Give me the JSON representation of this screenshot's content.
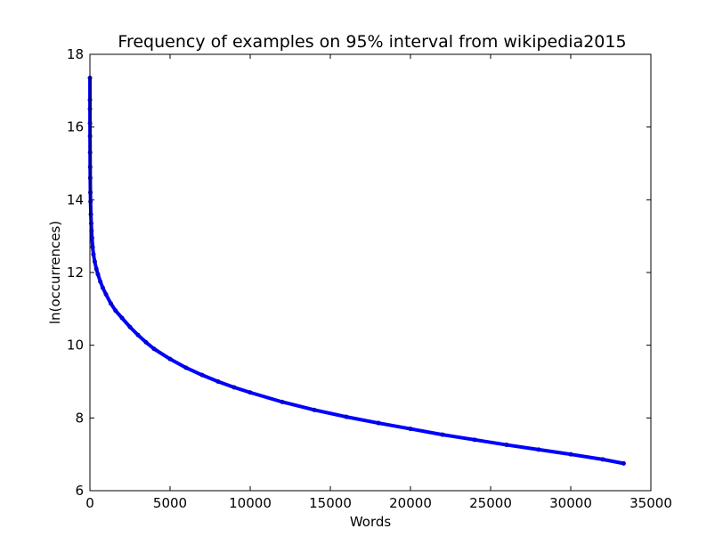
{
  "chart_data": {
    "type": "line",
    "title": "Frequency of examples on 95% interval from wikipedia2015",
    "xlabel": "Words",
    "ylabel": "ln(occurrences)",
    "xlim": [
      0,
      35000
    ],
    "ylim": [
      6,
      18
    ],
    "x_ticks": [
      0,
      5000,
      10000,
      15000,
      20000,
      25000,
      30000,
      35000
    ],
    "y_ticks": [
      6,
      8,
      10,
      12,
      14,
      16,
      18
    ],
    "grid": false,
    "legend": "none",
    "series_color": "#0000ff",
    "series": [
      {
        "x": [
          1,
          2,
          3,
          5,
          7,
          10,
          15,
          20,
          30,
          40,
          60,
          80,
          100,
          130,
          170,
          220,
          300,
          400,
          500,
          650,
          800,
          1000,
          1300,
          1600,
          2000,
          2500,
          3000,
          3500,
          4000,
          5000,
          6000,
          7000,
          8000,
          9000,
          10000,
          12000,
          14000,
          16000,
          18000,
          20000,
          22000,
          24000,
          26000,
          28000,
          30000,
          32000,
          33300
        ],
        "y": [
          17.35,
          16.75,
          16.5,
          16.1,
          15.75,
          15.3,
          14.9,
          14.6,
          14.2,
          13.95,
          13.6,
          13.35,
          13.15,
          12.95,
          12.7,
          12.5,
          12.3,
          12.1,
          11.95,
          11.75,
          11.58,
          11.4,
          11.15,
          10.95,
          10.75,
          10.5,
          10.28,
          10.08,
          9.9,
          9.62,
          9.38,
          9.18,
          9.0,
          8.84,
          8.7,
          8.44,
          8.22,
          8.03,
          7.86,
          7.7,
          7.54,
          7.4,
          7.26,
          7.13,
          7.0,
          6.86,
          6.75
        ]
      }
    ]
  }
}
